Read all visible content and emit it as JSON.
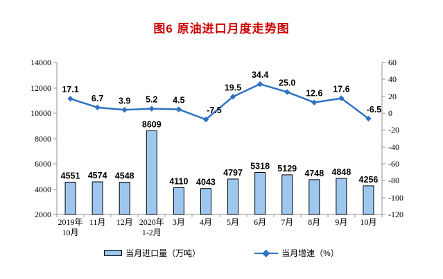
{
  "page": {
    "title": "图6  原油进口月度走势图"
  },
  "chart_data": {
    "type": "bar",
    "combo": "bar+line",
    "title": "图6 原油进口月度走势图",
    "categories": [
      "2019年\n10月",
      "11月",
      "12月",
      "2020年\n1-2月",
      "3月",
      "4月",
      "5月",
      "6月",
      "7月",
      "8月",
      "9月",
      "10月"
    ],
    "series": [
      {
        "name": "当月进口量（万吨）",
        "type": "bar",
        "axis": "left",
        "values": [
          4551,
          4574,
          4548,
          8609,
          4110,
          4043,
          4797,
          5318,
          5129,
          4748,
          4848,
          4256
        ]
      },
      {
        "name": "当月增速（%）",
        "type": "line",
        "axis": "right",
        "values": [
          17.1,
          6.7,
          3.9,
          5.2,
          4.5,
          -7.5,
          19.5,
          34.4,
          25.0,
          12.6,
          17.6,
          -6.5
        ],
        "labels": [
          "17.1",
          "6.7",
          "3.9",
          "5.2",
          "4.5",
          "-7.5",
          "19.5",
          "34.4",
          "25.0",
          "12.6",
          "17.6",
          "-6.5"
        ]
      }
    ],
    "left_axis": {
      "min": 2000,
      "max": 14000,
      "step": 2000,
      "ticks": [
        2000,
        4000,
        6000,
        8000,
        10000,
        12000,
        14000
      ]
    },
    "right_axis": {
      "min": -120,
      "max": 60,
      "step": 20,
      "ticks": [
        60,
        40,
        20,
        0,
        -20,
        -40,
        -60,
        -80,
        -100,
        -120
      ]
    },
    "grid": false,
    "legend_position": "bottom",
    "colors": {
      "bar_fill": "#9EC7EF",
      "bar_stroke": "#000000",
      "line": "#2D72C4",
      "title": "#cc0000",
      "axis": "#909090",
      "text": "#000000"
    }
  },
  "legend": {
    "items": [
      {
        "label": "当月进口量（万吨）",
        "marker": "bar-swatch"
      },
      {
        "label": "当月增速（%）",
        "marker": "line-diamond"
      }
    ]
  }
}
